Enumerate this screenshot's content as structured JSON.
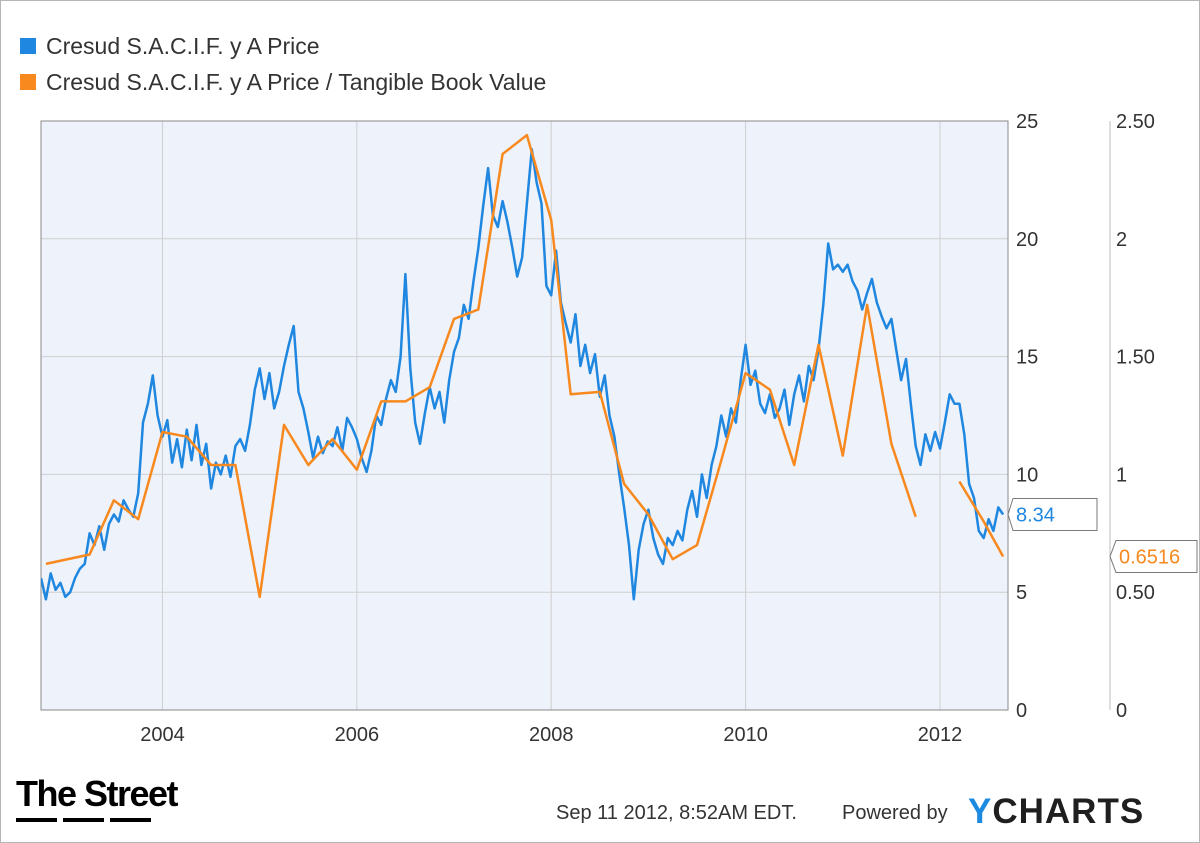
{
  "legend": [
    {
      "label": "Cresud S.A.C.I.F. y A Price",
      "color": "#1f87e0"
    },
    {
      "label": "Cresud S.A.C.I.F. y A Price / Tangible Book Value",
      "color": "#f7891f"
    }
  ],
  "footer": {
    "timestamp": "Sep 11 2012, 8:52AM EDT.",
    "powered_by": "Powered by",
    "brand": "YCHARTS",
    "brand_first_letter": "Y",
    "brand_rest": "CHARTS",
    "logo_text": "The Street"
  },
  "chart_data": {
    "type": "line",
    "x_range": [
      2002.75,
      2012.7
    ],
    "x_ticks": [
      2004,
      2006,
      2008,
      2010,
      2012
    ],
    "x_tick_labels": [
      "2004",
      "2006",
      "2008",
      "2010",
      "2012"
    ],
    "y_left": {
      "range": [
        0,
        25
      ],
      "ticks": [
        0,
        5,
        10,
        15,
        20,
        25
      ],
      "tick_labels": [
        "0",
        "5",
        "10",
        "15",
        "20",
        "25"
      ]
    },
    "y_right": {
      "range": [
        0,
        2.5
      ],
      "ticks": [
        0,
        0.5,
        1,
        1.5,
        2,
        2.5
      ],
      "tick_labels": [
        "0",
        "0.50",
        "1",
        "1.50",
        "2",
        "2.50"
      ]
    },
    "grid": true,
    "legend_position": "top-left",
    "background": "#eef2fb",
    "series": [
      {
        "name": "Cresud S.A.C.I.F. y A Price",
        "axis": "left",
        "color": "#1f87e0",
        "last_value_label": "8.34",
        "points": [
          [
            2002.75,
            5.6
          ],
          [
            2002.8,
            4.7
          ],
          [
            2002.85,
            5.8
          ],
          [
            2002.9,
            5.1
          ],
          [
            2002.95,
            5.4
          ],
          [
            2003.0,
            4.8
          ],
          [
            2003.05,
            5.0
          ],
          [
            2003.1,
            5.6
          ],
          [
            2003.15,
            6.0
          ],
          [
            2003.2,
            6.2
          ],
          [
            2003.25,
            7.5
          ],
          [
            2003.3,
            7.0
          ],
          [
            2003.35,
            7.8
          ],
          [
            2003.4,
            6.8
          ],
          [
            2003.45,
            7.9
          ],
          [
            2003.5,
            8.3
          ],
          [
            2003.55,
            8.0
          ],
          [
            2003.6,
            8.9
          ],
          [
            2003.65,
            8.5
          ],
          [
            2003.7,
            8.2
          ],
          [
            2003.75,
            9.2
          ],
          [
            2003.8,
            12.2
          ],
          [
            2003.85,
            13.0
          ],
          [
            2003.9,
            14.2
          ],
          [
            2003.95,
            12.5
          ],
          [
            2004.0,
            11.6
          ],
          [
            2004.05,
            12.3
          ],
          [
            2004.1,
            10.5
          ],
          [
            2004.15,
            11.5
          ],
          [
            2004.2,
            10.3
          ],
          [
            2004.25,
            11.9
          ],
          [
            2004.3,
            10.6
          ],
          [
            2004.35,
            12.1
          ],
          [
            2004.4,
            10.4
          ],
          [
            2004.45,
            11.3
          ],
          [
            2004.5,
            9.4
          ],
          [
            2004.55,
            10.5
          ],
          [
            2004.6,
            10.0
          ],
          [
            2004.65,
            10.8
          ],
          [
            2004.7,
            9.9
          ],
          [
            2004.75,
            11.2
          ],
          [
            2004.8,
            11.5
          ],
          [
            2004.85,
            11.0
          ],
          [
            2004.9,
            12.1
          ],
          [
            2004.95,
            13.6
          ],
          [
            2005.0,
            14.5
          ],
          [
            2005.05,
            13.2
          ],
          [
            2005.1,
            14.3
          ],
          [
            2005.15,
            12.8
          ],
          [
            2005.2,
            13.5
          ],
          [
            2005.25,
            14.6
          ],
          [
            2005.3,
            15.5
          ],
          [
            2005.35,
            16.3
          ],
          [
            2005.4,
            13.5
          ],
          [
            2005.45,
            12.8
          ],
          [
            2005.5,
            11.8
          ],
          [
            2005.55,
            10.7
          ],
          [
            2005.6,
            11.6
          ],
          [
            2005.65,
            10.9
          ],
          [
            2005.7,
            11.4
          ],
          [
            2005.75,
            11.2
          ],
          [
            2005.8,
            12.0
          ],
          [
            2005.85,
            11.0
          ],
          [
            2005.9,
            12.4
          ],
          [
            2005.95,
            12.0
          ],
          [
            2006.0,
            11.5
          ],
          [
            2006.05,
            10.7
          ],
          [
            2006.1,
            10.1
          ],
          [
            2006.15,
            11.0
          ],
          [
            2006.2,
            12.5
          ],
          [
            2006.25,
            12.1
          ],
          [
            2006.3,
            13.2
          ],
          [
            2006.35,
            14.0
          ],
          [
            2006.4,
            13.5
          ],
          [
            2006.45,
            15.0
          ],
          [
            2006.5,
            18.5
          ],
          [
            2006.55,
            14.5
          ],
          [
            2006.6,
            12.2
          ],
          [
            2006.65,
            11.3
          ],
          [
            2006.7,
            12.6
          ],
          [
            2006.75,
            13.7
          ],
          [
            2006.8,
            12.8
          ],
          [
            2006.85,
            13.5
          ],
          [
            2006.9,
            12.2
          ],
          [
            2006.95,
            14.0
          ],
          [
            2007.0,
            15.2
          ],
          [
            2007.05,
            15.8
          ],
          [
            2007.1,
            17.2
          ],
          [
            2007.15,
            16.6
          ],
          [
            2007.2,
            18.2
          ],
          [
            2007.25,
            19.6
          ],
          [
            2007.3,
            21.4
          ],
          [
            2007.35,
            23.0
          ],
          [
            2007.4,
            21.0
          ],
          [
            2007.45,
            20.5
          ],
          [
            2007.5,
            21.6
          ],
          [
            2007.55,
            20.7
          ],
          [
            2007.6,
            19.6
          ],
          [
            2007.65,
            18.4
          ],
          [
            2007.7,
            19.2
          ],
          [
            2007.75,
            21.5
          ],
          [
            2007.8,
            23.8
          ],
          [
            2007.85,
            22.4
          ],
          [
            2007.9,
            21.5
          ],
          [
            2007.95,
            18.0
          ],
          [
            2008.0,
            17.6
          ],
          [
            2008.05,
            19.5
          ],
          [
            2008.1,
            17.3
          ],
          [
            2008.15,
            16.4
          ],
          [
            2008.2,
            15.6
          ],
          [
            2008.25,
            16.8
          ],
          [
            2008.3,
            14.6
          ],
          [
            2008.35,
            15.5
          ],
          [
            2008.4,
            14.3
          ],
          [
            2008.45,
            15.1
          ],
          [
            2008.5,
            13.3
          ],
          [
            2008.55,
            14.2
          ],
          [
            2008.6,
            12.5
          ],
          [
            2008.65,
            11.6
          ],
          [
            2008.7,
            10.0
          ],
          [
            2008.75,
            8.6
          ],
          [
            2008.8,
            7.0
          ],
          [
            2008.85,
            4.7
          ],
          [
            2008.9,
            6.8
          ],
          [
            2008.95,
            7.9
          ],
          [
            2009.0,
            8.5
          ],
          [
            2009.05,
            7.3
          ],
          [
            2009.1,
            6.6
          ],
          [
            2009.15,
            6.2
          ],
          [
            2009.2,
            7.3
          ],
          [
            2009.25,
            7.0
          ],
          [
            2009.3,
            7.6
          ],
          [
            2009.35,
            7.2
          ],
          [
            2009.4,
            8.5
          ],
          [
            2009.45,
            9.3
          ],
          [
            2009.5,
            8.2
          ],
          [
            2009.55,
            10.0
          ],
          [
            2009.6,
            9.0
          ],
          [
            2009.65,
            10.4
          ],
          [
            2009.7,
            11.2
          ],
          [
            2009.75,
            12.5
          ],
          [
            2009.8,
            11.6
          ],
          [
            2009.85,
            12.8
          ],
          [
            2009.9,
            12.2
          ],
          [
            2009.95,
            14.0
          ],
          [
            2010.0,
            15.5
          ],
          [
            2010.05,
            13.8
          ],
          [
            2010.1,
            14.4
          ],
          [
            2010.15,
            13.0
          ],
          [
            2010.2,
            12.6
          ],
          [
            2010.25,
            13.4
          ],
          [
            2010.3,
            12.4
          ],
          [
            2010.35,
            12.8
          ],
          [
            2010.4,
            13.6
          ],
          [
            2010.45,
            12.1
          ],
          [
            2010.5,
            13.4
          ],
          [
            2010.55,
            14.2
          ],
          [
            2010.6,
            13.1
          ],
          [
            2010.65,
            14.6
          ],
          [
            2010.7,
            14.0
          ],
          [
            2010.75,
            15.3
          ],
          [
            2010.8,
            17.2
          ],
          [
            2010.85,
            19.8
          ],
          [
            2010.9,
            18.7
          ],
          [
            2010.95,
            18.9
          ],
          [
            2011.0,
            18.6
          ],
          [
            2011.05,
            18.9
          ],
          [
            2011.1,
            18.2
          ],
          [
            2011.15,
            17.8
          ],
          [
            2011.2,
            17.0
          ],
          [
            2011.25,
            17.7
          ],
          [
            2011.3,
            18.3
          ],
          [
            2011.35,
            17.3
          ],
          [
            2011.4,
            16.7
          ],
          [
            2011.45,
            16.2
          ],
          [
            2011.5,
            16.6
          ],
          [
            2011.55,
            15.3
          ],
          [
            2011.6,
            14.0
          ],
          [
            2011.65,
            14.9
          ],
          [
            2011.7,
            13.0
          ],
          [
            2011.75,
            11.2
          ],
          [
            2011.8,
            10.4
          ],
          [
            2011.85,
            11.7
          ],
          [
            2011.9,
            11.0
          ],
          [
            2011.95,
            11.8
          ],
          [
            2012.0,
            11.1
          ],
          [
            2012.05,
            12.2
          ],
          [
            2012.1,
            13.4
          ],
          [
            2012.15,
            13.0
          ],
          [
            2012.2,
            13.0
          ],
          [
            2012.25,
            11.7
          ],
          [
            2012.3,
            9.6
          ],
          [
            2012.35,
            9.0
          ],
          [
            2012.4,
            7.6
          ],
          [
            2012.45,
            7.3
          ],
          [
            2012.5,
            8.1
          ],
          [
            2012.55,
            7.6
          ],
          [
            2012.6,
            8.6
          ],
          [
            2012.65,
            8.3
          ]
        ]
      },
      {
        "name": "Cresud S.A.C.I.F. y A Price / Tangible Book Value",
        "axis": "right",
        "color": "#f7891f",
        "last_value_label": "0.6516",
        "segments": [
          [
            [
              2002.8,
              0.62
            ],
            [
              2003.25,
              0.66
            ],
            [
              2003.5,
              0.89
            ],
            [
              2003.75,
              0.81
            ],
            [
              2004.0,
              1.18
            ],
            [
              2004.25,
              1.16
            ],
            [
              2004.5,
              1.04
            ],
            [
              2004.75,
              1.04
            ],
            [
              2005.0,
              0.48
            ],
            [
              2005.25,
              1.21
            ],
            [
              2005.5,
              1.04
            ],
            [
              2005.75,
              1.15
            ],
            [
              2006.0,
              1.02
            ],
            [
              2006.25,
              1.31
            ],
            [
              2006.5,
              1.31
            ],
            [
              2006.75,
              1.37
            ],
            [
              2007.0,
              1.66
            ],
            [
              2007.25,
              1.7
            ],
            [
              2007.5,
              2.36
            ],
            [
              2007.75,
              2.44
            ],
            [
              2008.0,
              2.08
            ],
            [
              2008.2,
              1.34
            ],
            [
              2008.5,
              1.35
            ],
            [
              2008.75,
              0.96
            ],
            [
              2009.0,
              0.83
            ],
            [
              2009.25,
              0.64
            ],
            [
              2009.5,
              0.7
            ],
            [
              2009.75,
              1.06
            ],
            [
              2010.0,
              1.43
            ],
            [
              2010.25,
              1.36
            ],
            [
              2010.5,
              1.04
            ],
            [
              2010.75,
              1.55
            ],
            [
              2011.0,
              1.08
            ],
            [
              2011.25,
              1.72
            ],
            [
              2011.5,
              1.13
            ],
            [
              2011.75,
              0.82
            ]
          ],
          [
            [
              2012.2,
              0.97
            ],
            [
              2012.45,
              0.8
            ],
            [
              2012.65,
              0.6516
            ]
          ]
        ]
      }
    ]
  }
}
